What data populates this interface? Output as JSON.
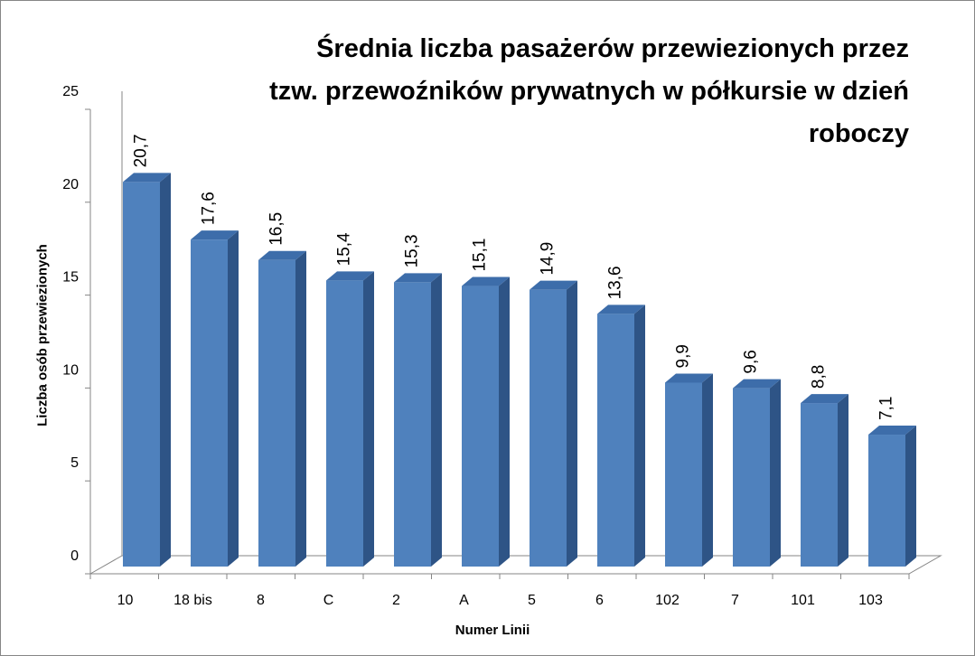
{
  "chart_data": {
    "type": "bar",
    "title_lines": [
      "Średnia liczba pasażerów przewiezionych przez",
      "tzw. przewoźników prywatnych w półkursie w dzień",
      "roboczy"
    ],
    "xlabel": "Numer Linii",
    "ylabel": "Liczba osób przewiezionych",
    "categories": [
      "10",
      "18 bis",
      "8",
      "C",
      "2",
      "A",
      "5",
      "6",
      "102",
      "7",
      "101",
      "103"
    ],
    "values": [
      20.7,
      17.6,
      16.5,
      15.4,
      15.3,
      15.1,
      14.9,
      13.6,
      9.9,
      9.6,
      8.8,
      7.1
    ],
    "value_labels": [
      "20,7",
      "17,6",
      "16,5",
      "15,4",
      "15,3",
      "15,1",
      "14,9",
      "13,6",
      "9,9",
      "9,6",
      "8,8",
      "7,1"
    ],
    "ylim": [
      0,
      25
    ],
    "yticks": [
      "0",
      "5",
      "10",
      "15",
      "20",
      "25"
    ],
    "grid": false,
    "legend": "none",
    "bar_style": "3d",
    "bar_color": "#4F81BD",
    "bar_side_color": "#2E5486",
    "bar_top_color": "#3D6DAA"
  }
}
